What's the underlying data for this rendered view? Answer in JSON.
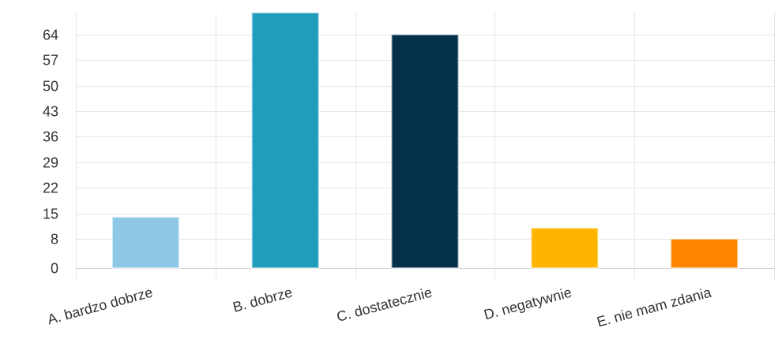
{
  "chart_data": {
    "type": "bar",
    "categories": [
      "A. bardzo dobrze",
      "B. dobrze",
      "C. dostatecznie",
      "D. negatywnie",
      "E. nie mam zdania"
    ],
    "values": [
      14,
      70,
      64,
      11,
      8
    ],
    "colors": [
      "#8fc7e6",
      "#209cbd",
      "#05314a",
      "#ffb400",
      "#ff8400"
    ],
    "y_ticks": [
      0,
      8,
      15,
      22,
      29,
      36,
      43,
      50,
      57,
      64
    ],
    "ylim": [
      0,
      70
    ],
    "grid": true,
    "legend": "none",
    "title": "",
    "xlabel": "",
    "ylabel": ""
  }
}
